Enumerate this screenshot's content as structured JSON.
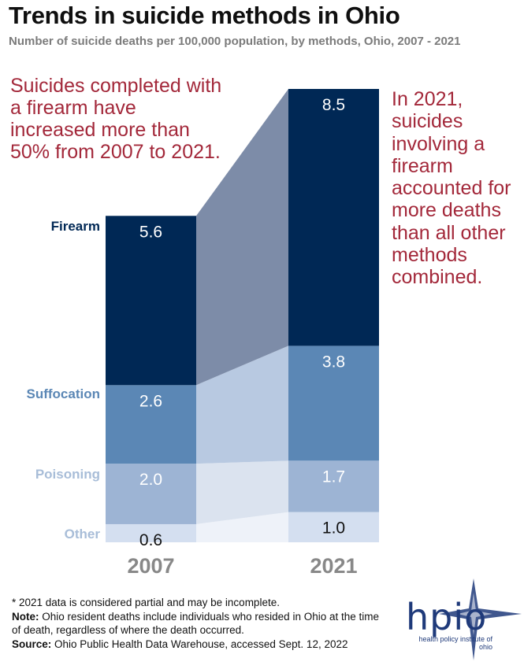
{
  "header": {
    "title": "Trends in suicide methods in Ohio",
    "subtitle": "Number of suicide deaths per 100,000 population, by methods, Ohio, 2007 - 2021"
  },
  "annotations": {
    "left": "Suicides completed with a firearm have increased more than 50% from 2007 to 2021.",
    "right": "In 2021, suicides involving a firearm accounted for more deaths than all other methods combined."
  },
  "chart_data": {
    "type": "bar",
    "stacked": true,
    "categories": [
      "2007",
      "2021"
    ],
    "series": [
      {
        "name": "Other",
        "values": [
          0.6,
          1.0
        ],
        "color": "#d4dff0",
        "label_color": "#a8bdd8"
      },
      {
        "name": "Poisoning",
        "values": [
          2.0,
          1.7
        ],
        "color": "#9db4d4",
        "label_color": "#a8bdd8"
      },
      {
        "name": "Suffocation",
        "values": [
          2.6,
          3.8
        ],
        "color": "#5b87b5",
        "label_color": "#5b87b5"
      },
      {
        "name": "Firearm",
        "values": [
          5.6,
          8.5
        ],
        "color": "#002855",
        "label_color": "#002855"
      }
    ],
    "connector_colors": [
      "#eef2f9",
      "#dbe3ef",
      "#b8c9e1",
      "#7d8ca8"
    ],
    "value_label_colors": [
      "#111111",
      "#ffffff",
      "#ffffff",
      "#ffffff"
    ],
    "axis_label_color": "#888888"
  },
  "footer": {
    "partial_note": "* 2021 data is considered partial and may be incomplete.",
    "note_label": "Note:",
    "note_text": " Ohio resident deaths include individuals who resided in Ohio at the time of death, regardless of where the death occurred.",
    "source_label": "Source:",
    "source_text": " Ohio Public Health Data Warehouse, accessed Sept. 12, 2022"
  },
  "logo": {
    "text": "hpio",
    "tagline": "health policy institute of ohio"
  }
}
